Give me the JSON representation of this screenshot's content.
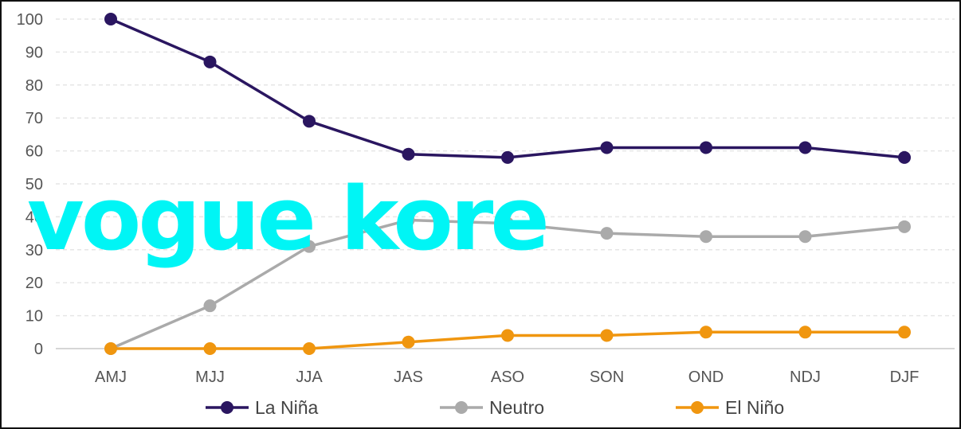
{
  "chart_data": {
    "type": "line",
    "categories": [
      "AMJ",
      "MJJ",
      "JJA",
      "JAS",
      "ASO",
      "SON",
      "OND",
      "NDJ",
      "DJF"
    ],
    "series": [
      {
        "name": "La Niña",
        "color": "#2a1660",
        "values": [
          100,
          87,
          69,
          59,
          58,
          61,
          61,
          61,
          58
        ]
      },
      {
        "name": "Neutro",
        "color": "#aaaaaa",
        "values": [
          0,
          13,
          31,
          39,
          38,
          35,
          34,
          34,
          37
        ]
      },
      {
        "name": "El Niño",
        "color": "#f0960f",
        "values": [
          0,
          0,
          0,
          2,
          4,
          4,
          5,
          5,
          5
        ]
      }
    ],
    "ylim": [
      0,
      100
    ],
    "yticks": [
      "0",
      "10",
      "20",
      "30",
      "40",
      "50",
      "60",
      "70",
      "80",
      "90",
      "100"
    ],
    "grid": "horizontal-dashed",
    "legend_position": "bottom"
  },
  "watermark": {
    "text": "vogue kore",
    "color": "#00f5f5"
  }
}
